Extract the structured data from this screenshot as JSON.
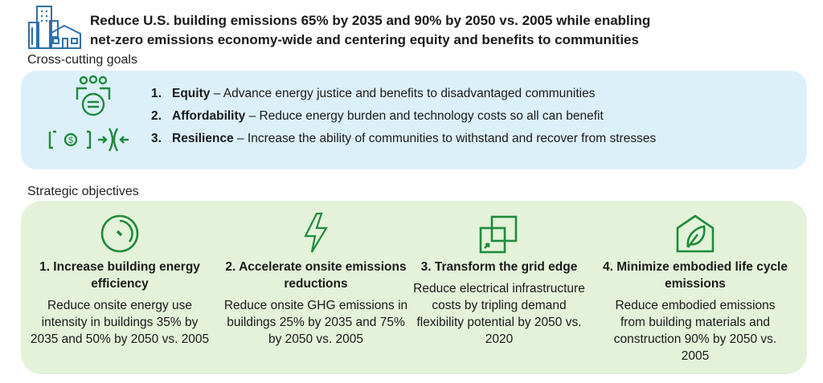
{
  "header": {
    "title_line1": "Reduce U.S. building emissions 65% by 2035 and 90% by 2050 vs. 2005 while enabling",
    "title_line2": "net-zero emissions economy-wide and centering equity and benefits to communities"
  },
  "cross_cutting": {
    "heading": "Cross-cutting goals",
    "goals": [
      {
        "num": "1.",
        "name": "Equity",
        "desc": " – Advance energy justice and benefits to disadvantaged communities"
      },
      {
        "num": "2.",
        "name": "Affordability",
        "desc": " – Reduce energy burden and technology costs so all can benefit"
      },
      {
        "num": "3.",
        "name": "Resilience",
        "desc": " – Increase the ability of communities to withstand and recover from stresses"
      }
    ]
  },
  "strategic": {
    "heading": "Strategic objectives",
    "objectives": [
      {
        "title": "1. Increase building energy efficiency",
        "desc": "Reduce onsite energy use intensity in buildings 35% by 2035 and 50% by 2050 vs. 2005"
      },
      {
        "title": "2. Accelerate onsite emissions reductions",
        "desc": "Reduce onsite GHG emissions in buildings 25% by 2035 and 75% by 2050 vs. 2005"
      },
      {
        "title": "3. Transform the grid edge",
        "desc": "Reduce electrical infrastructure costs by tripling demand flexibility potential by 2050 vs. 2020"
      },
      {
        "title": "4. Minimize embodied life cycle emissions",
        "desc": "Reduce embodied emissions from building materials and construction 90% by 2050 vs. 2005"
      }
    ]
  },
  "colors": {
    "icon_green": "#1f8a3c",
    "icon_blue": "#2f6fa8",
    "blue_bg": "#dcf0fa",
    "green_bg": "#e3f2d9"
  }
}
